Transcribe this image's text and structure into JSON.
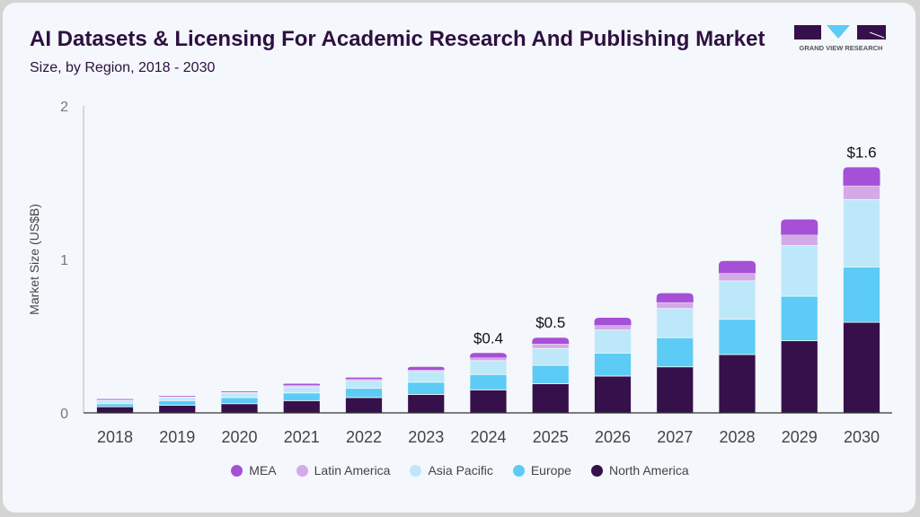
{
  "header": {
    "title": "AI Datasets & Licensing For Academic Research And Publishing Market",
    "subtitle": "Size, by Region, 2018 - 2030",
    "logo_text": "GRAND VIEW RESEARCH"
  },
  "chart_data": {
    "type": "bar",
    "stacked": true,
    "ylabel": "Market Size (US$B)",
    "xlabel": "",
    "ylim": [
      0,
      2
    ],
    "yticks": [
      "0",
      "1",
      "2"
    ],
    "grid": false,
    "legend_placement": "bottom",
    "categories": [
      "2018",
      "2019",
      "2020",
      "2021",
      "2022",
      "2023",
      "2024",
      "2025",
      "2026",
      "2027",
      "2028",
      "2029",
      "2030"
    ],
    "series": [
      {
        "name": "North America",
        "color": "#36104a",
        "values": [
          0.04,
          0.05,
          0.06,
          0.08,
          0.1,
          0.12,
          0.15,
          0.19,
          0.24,
          0.3,
          0.38,
          0.47,
          0.59
        ]
      },
      {
        "name": "Europe",
        "color": "#5ccbf5",
        "values": [
          0.02,
          0.03,
          0.04,
          0.05,
          0.06,
          0.08,
          0.1,
          0.12,
          0.15,
          0.19,
          0.23,
          0.29,
          0.36
        ]
      },
      {
        "name": "Asia Pacific",
        "color": "#bde8f9",
        "values": [
          0.02,
          0.02,
          0.03,
          0.04,
          0.05,
          0.07,
          0.09,
          0.11,
          0.15,
          0.19,
          0.25,
          0.33,
          0.44
        ]
      },
      {
        "name": "Latin America",
        "color": "#d4a9e8",
        "values": [
          0.005,
          0.005,
          0.005,
          0.01,
          0.01,
          0.01,
          0.02,
          0.03,
          0.03,
          0.04,
          0.05,
          0.07,
          0.09
        ]
      },
      {
        "name": "MEA",
        "color": "#a550d6",
        "values": [
          0.005,
          0.005,
          0.005,
          0.01,
          0.01,
          0.02,
          0.03,
          0.04,
          0.05,
          0.06,
          0.08,
          0.1,
          0.12
        ]
      }
    ],
    "annotations": [
      {
        "category": "2024",
        "text": "$0.4"
      },
      {
        "category": "2025",
        "text": "$0.5"
      },
      {
        "category": "2030",
        "text": "$1.6"
      }
    ]
  }
}
